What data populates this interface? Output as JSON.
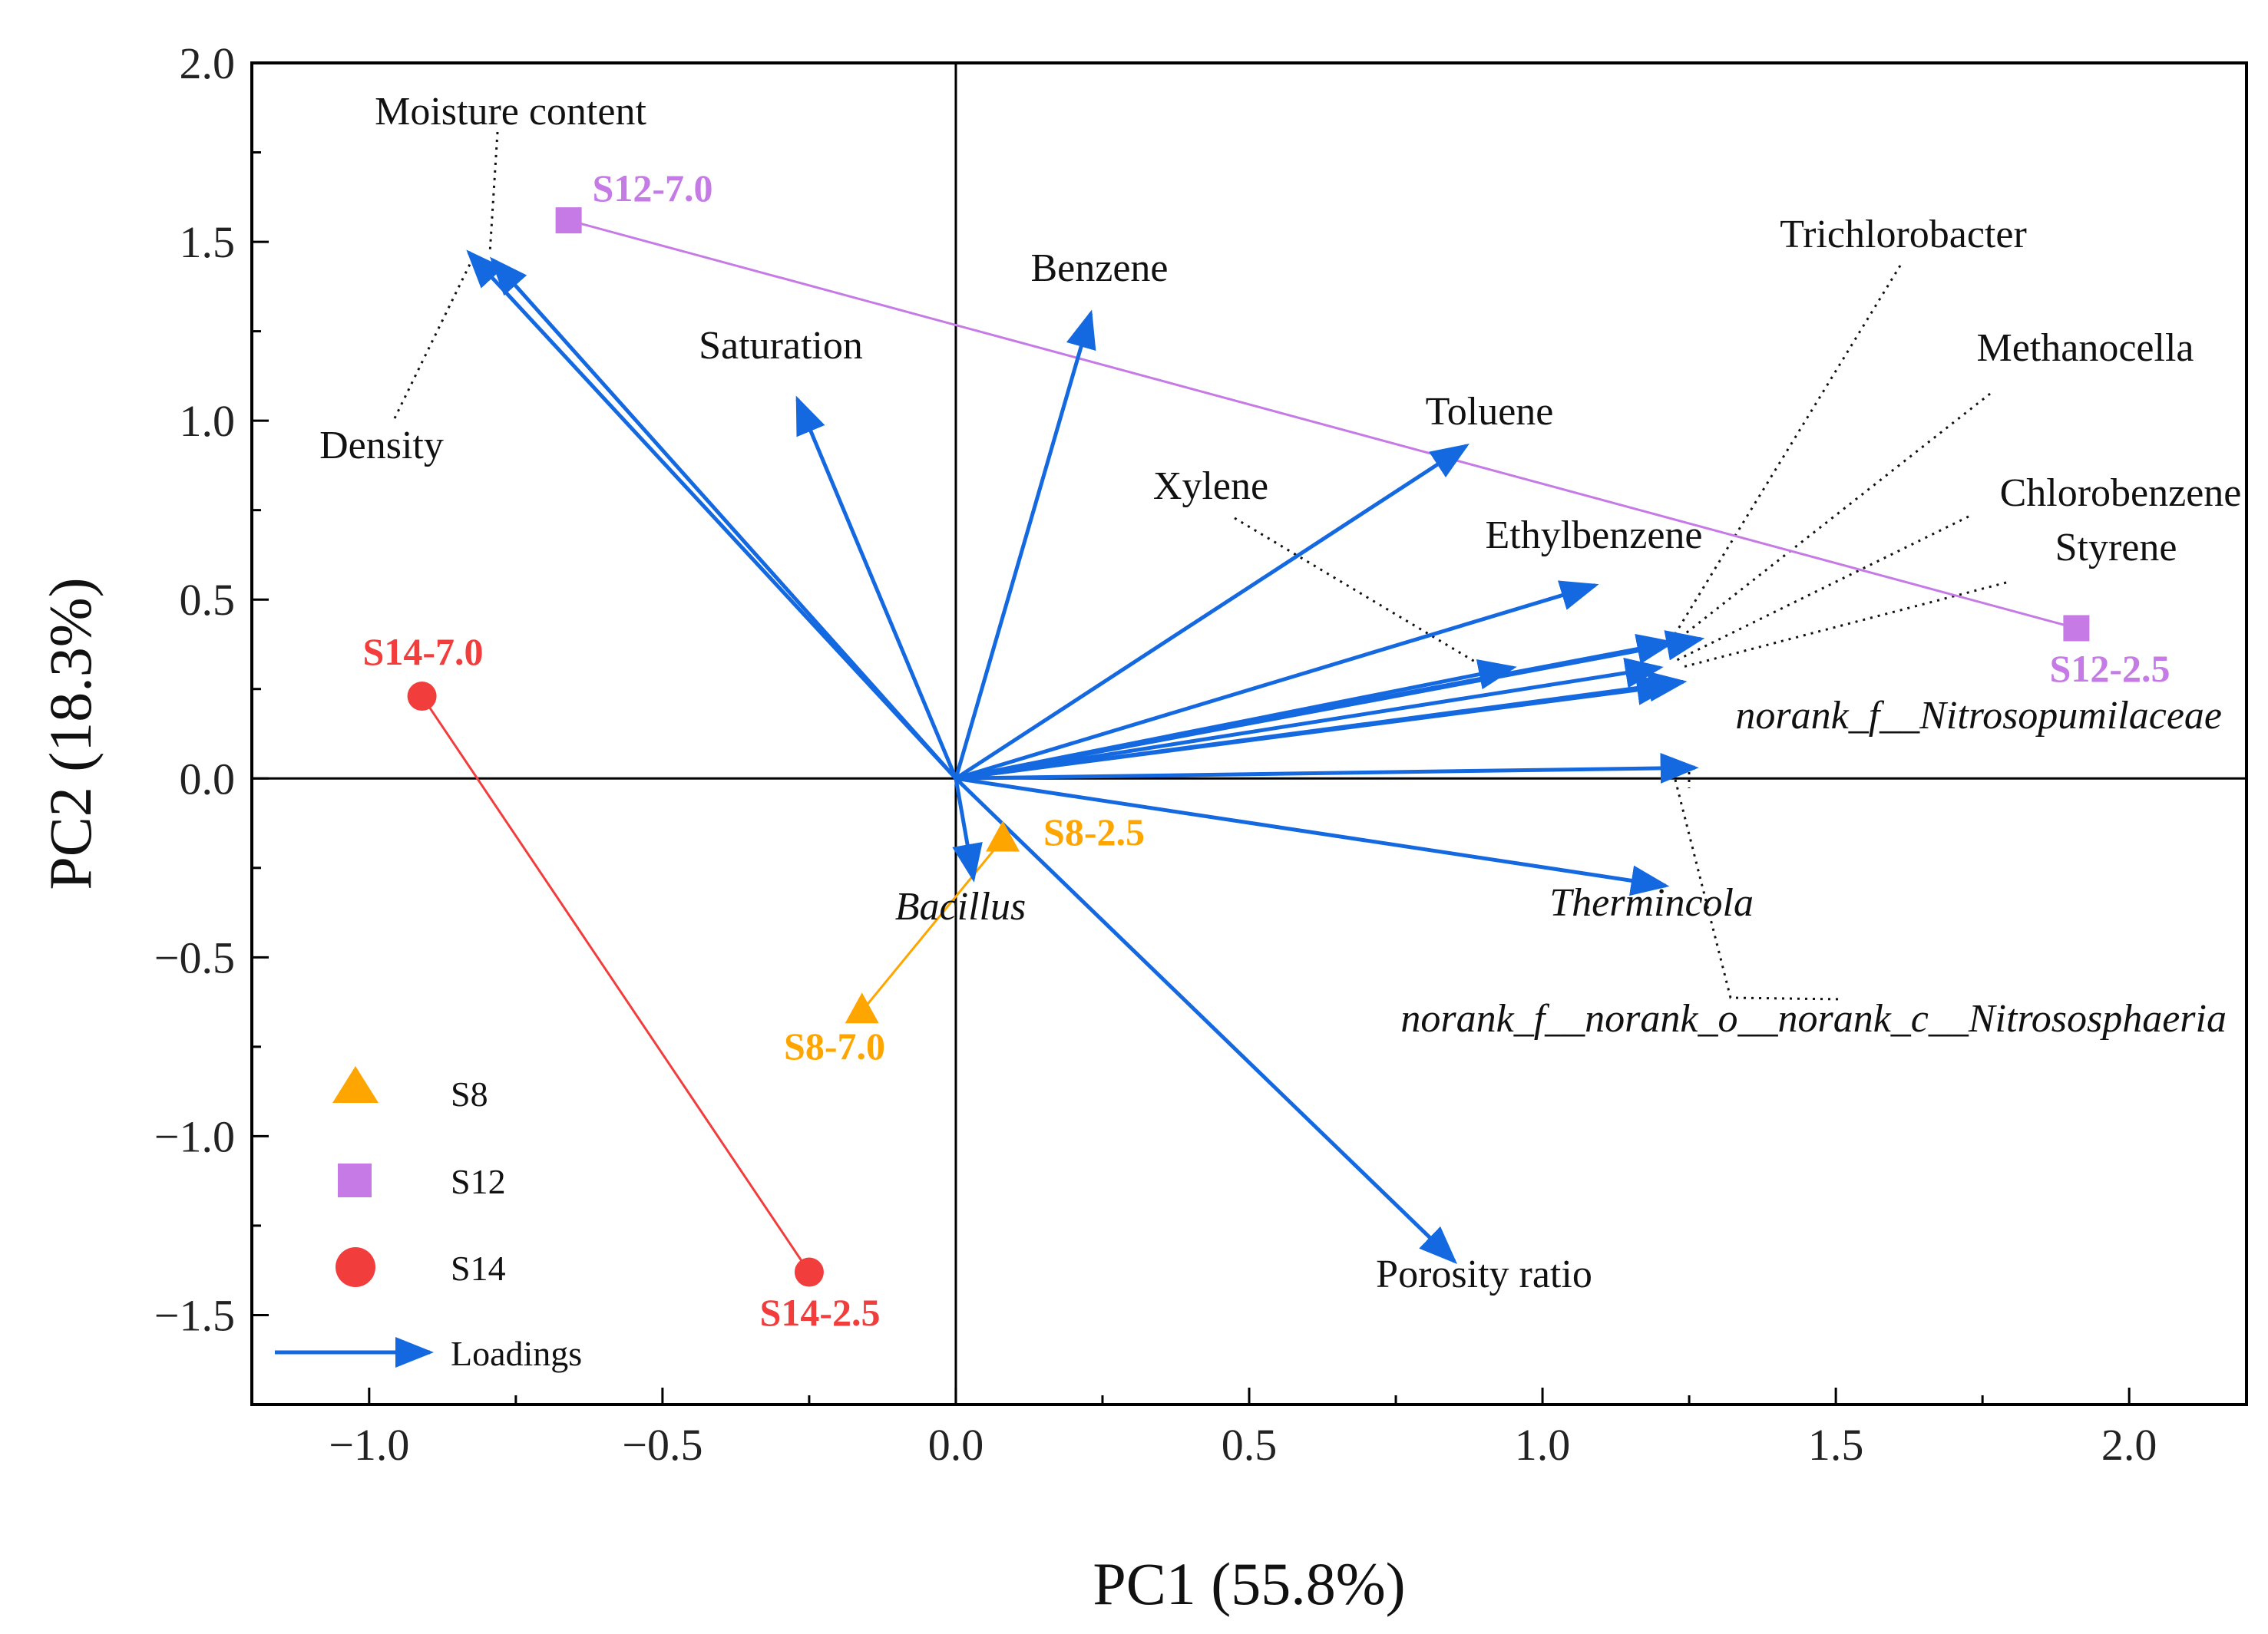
{
  "chart_data": {
    "type": "scatter",
    "subtype": "pca-biplot",
    "xlabel": "PC1 (55.8%)",
    "ylabel": "PC2 (18.3%)",
    "xlim": [
      -1.2,
      2.2
    ],
    "ylim": [
      -1.75,
      2.0
    ],
    "xticks": [
      -1.0,
      -0.5,
      0.0,
      0.5,
      1.0,
      1.5,
      2.0
    ],
    "yticks": [
      -1.5,
      -1.0,
      -0.5,
      0.0,
      0.5,
      1.0,
      1.5,
      2.0
    ],
    "xtick_labels": [
      "−1.0",
      "−0.5",
      "0.0",
      "0.5",
      "1.0",
      "1.5",
      "2.0"
    ],
    "ytick_labels": [
      "−1.5",
      "−1.0",
      "−0.5",
      "0.0",
      "0.5",
      "1.0",
      "1.5",
      "2.0"
    ],
    "colors": {
      "S8": "#FFA500",
      "S12": "#C57AE6",
      "S14": "#F23D3D",
      "loadings": "#1469E0"
    },
    "series": [
      {
        "name": "S8",
        "marker": "triangle",
        "points": [
          {
            "label": "S8-2.5",
            "x": 0.08,
            "y": -0.17
          },
          {
            "label": "S8-7.0",
            "x": -0.16,
            "y": -0.65
          }
        ]
      },
      {
        "name": "S12",
        "marker": "square",
        "points": [
          {
            "label": "S12-7.0",
            "x": -0.66,
            "y": 1.56
          },
          {
            "label": "S12-2.5",
            "x": 1.91,
            "y": 0.42
          }
        ]
      },
      {
        "name": "S14",
        "marker": "circle",
        "points": [
          {
            "label": "S14-7.0",
            "x": -0.91,
            "y": 0.23
          },
          {
            "label": "S14-2.5",
            "x": -0.25,
            "y": -1.38
          }
        ]
      }
    ],
    "loadings": [
      {
        "name": "Moisture content",
        "x": -0.79,
        "y": 1.45,
        "italic": false
      },
      {
        "name": "Density",
        "x": -0.83,
        "y": 1.47,
        "italic": false
      },
      {
        "name": "Saturation",
        "x": -0.27,
        "y": 1.06,
        "italic": false
      },
      {
        "name": "Benzene",
        "x": 0.23,
        "y": 1.3,
        "italic": false
      },
      {
        "name": "Toluene",
        "x": 0.87,
        "y": 0.93,
        "italic": false
      },
      {
        "name": "Ethylbenzene",
        "x": 1.09,
        "y": 0.54,
        "italic": false
      },
      {
        "name": "Xylene",
        "x": 0.95,
        "y": 0.31,
        "italic": false
      },
      {
        "name": "Trichlorobacter",
        "x": 1.27,
        "y": 0.39,
        "italic": false
      },
      {
        "name": "Methanocella",
        "x": 1.22,
        "y": 0.38,
        "italic": false
      },
      {
        "name": "Chlorobenzene",
        "x": 1.2,
        "y": 0.31,
        "italic": false
      },
      {
        "name": "Styrene",
        "x": 1.24,
        "y": 0.27,
        "italic": false
      },
      {
        "name": "norank_f__Nitrosopumilaceae",
        "x": 1.22,
        "y": 0.26,
        "italic": true
      },
      {
        "name": "norank_f__norank_o__norank_c__Nitrososphaeria",
        "x": 1.26,
        "y": 0.03,
        "italic": true
      },
      {
        "name": "Thermincola",
        "x": 1.21,
        "y": -0.3,
        "italic": true
      },
      {
        "name": "Bacillus",
        "x": 0.03,
        "y": -0.28,
        "italic": true
      },
      {
        "name": "Porosity ratio",
        "x": 0.85,
        "y": -1.35,
        "italic": false
      }
    ],
    "legend": {
      "position": "bottom-left",
      "entries": [
        "S8",
        "S12",
        "S14",
        "Loadings"
      ]
    }
  }
}
